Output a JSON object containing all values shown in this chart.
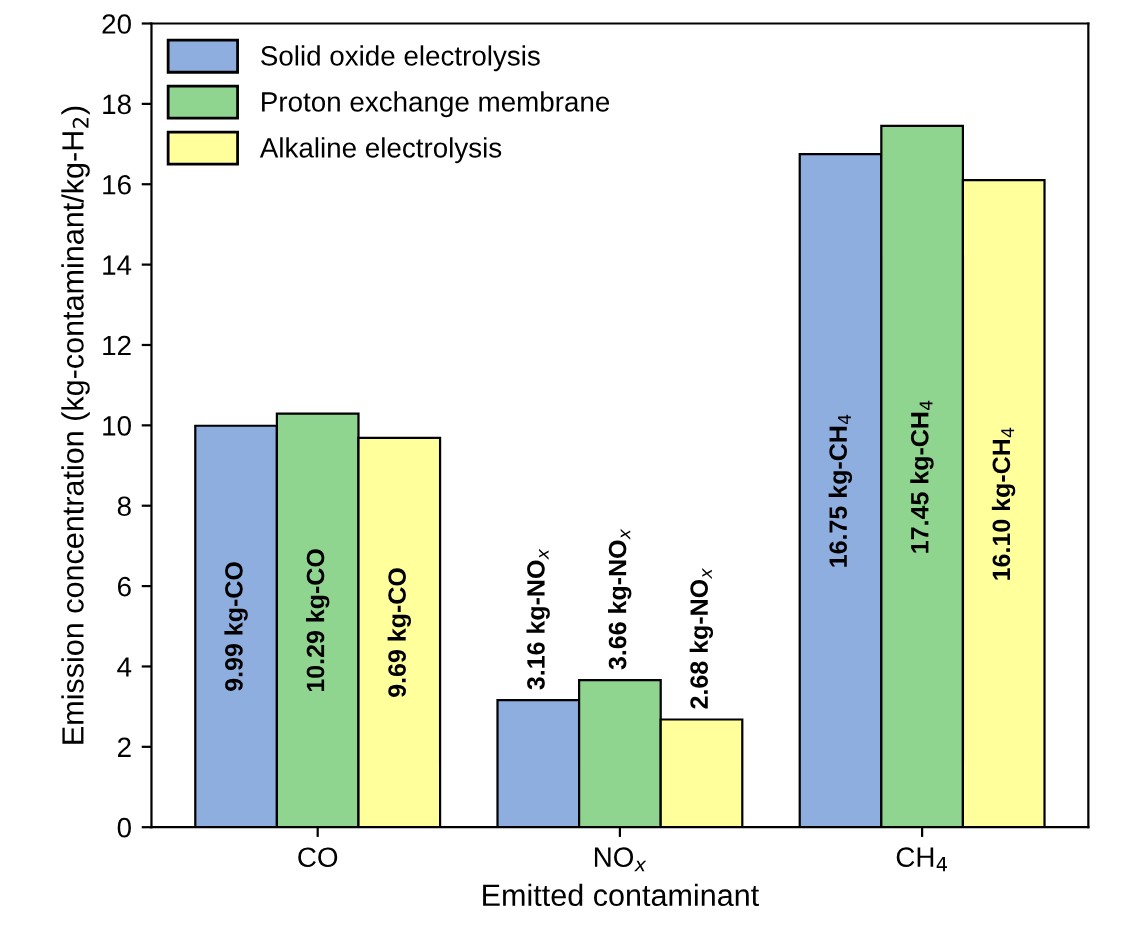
{
  "chart_data": {
    "type": "bar",
    "xlabel": "Emitted contaminant",
    "ylabel": "Emission concentration (kg-contaminant/kg-H$_{2}$)",
    "categories": [
      "CO",
      "NO$_{x}$",
      "CH$_{4}$"
    ],
    "series": [
      {
        "name": "Solid oxide electrolysis",
        "color": "#8eaee0",
        "values": [
          9.99,
          3.16,
          16.75
        ],
        "value_labels": [
          "9.99 kg-CO",
          "3.16 kg-NO$_{x}$",
          "16.75 kg-CH$_{4}$"
        ]
      },
      {
        "name": "Proton exchange membrane",
        "color": "#8fd48f",
        "values": [
          10.29,
          3.66,
          17.45
        ],
        "value_labels": [
          "10.29 kg-CO",
          "3.66 kg-NO$_{x}$",
          "17.45 kg-CH$_{4}$"
        ]
      },
      {
        "name": "Alkaline electrolysis",
        "color": "#ffff9c",
        "values": [
          9.69,
          2.68,
          16.1
        ],
        "value_labels": [
          "9.69 kg-CO",
          "2.68 kg-NO$_{x}$",
          "16.10 kg-CH$_{4}$"
        ]
      }
    ],
    "ylim": [
      0,
      20
    ],
    "yticks": [
      0,
      2,
      4,
      6,
      8,
      10,
      12,
      14,
      16,
      18,
      20
    ],
    "legend": "top left",
    "grid": false
  }
}
